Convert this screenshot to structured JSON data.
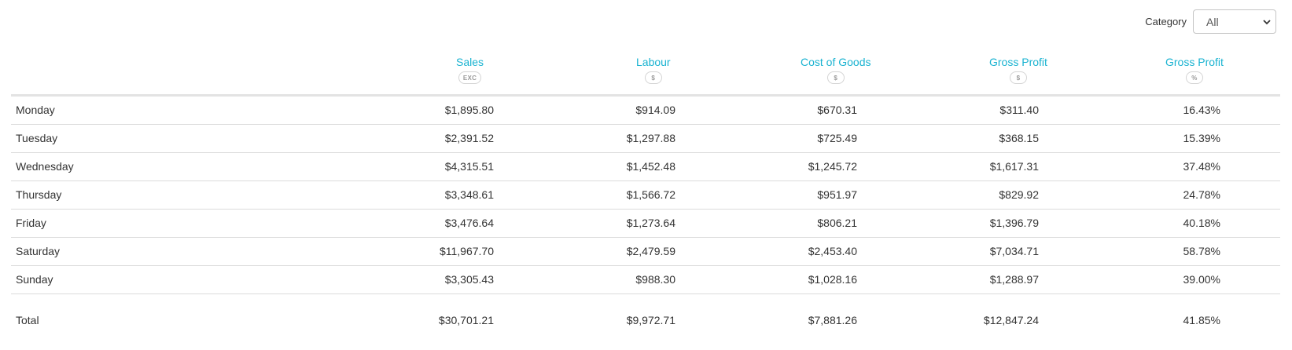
{
  "filter": {
    "label": "Category",
    "selected": "All"
  },
  "columns": [
    {
      "title": "Sales",
      "badge": "EXC"
    },
    {
      "title": "Labour",
      "badge": "$"
    },
    {
      "title": "Cost of Goods",
      "badge": "$"
    },
    {
      "title": "Gross Profit",
      "badge": "$"
    },
    {
      "title": "Gross Profit",
      "badge": "%"
    }
  ],
  "rows": [
    {
      "day": "Monday",
      "sales": "$1,895.80",
      "labour": "$914.09",
      "cogs": "$670.31",
      "gp": "$311.40",
      "gp_pct": "16.43%"
    },
    {
      "day": "Tuesday",
      "sales": "$2,391.52",
      "labour": "$1,297.88",
      "cogs": "$725.49",
      "gp": "$368.15",
      "gp_pct": "15.39%"
    },
    {
      "day": "Wednesday",
      "sales": "$4,315.51",
      "labour": "$1,452.48",
      "cogs": "$1,245.72",
      "gp": "$1,617.31",
      "gp_pct": "37.48%"
    },
    {
      "day": "Thursday",
      "sales": "$3,348.61",
      "labour": "$1,566.72",
      "cogs": "$951.97",
      "gp": "$829.92",
      "gp_pct": "24.78%"
    },
    {
      "day": "Friday",
      "sales": "$3,476.64",
      "labour": "$1,273.64",
      "cogs": "$806.21",
      "gp": "$1,396.79",
      "gp_pct": "40.18%"
    },
    {
      "day": "Saturday",
      "sales": "$11,967.70",
      "labour": "$2,479.59",
      "cogs": "$2,453.40",
      "gp": "$7,034.71",
      "gp_pct": "58.78%"
    },
    {
      "day": "Sunday",
      "sales": "$3,305.43",
      "labour": "$988.30",
      "cogs": "$1,028.16",
      "gp": "$1,288.97",
      "gp_pct": "39.00%"
    }
  ],
  "total": {
    "label": "Total",
    "sales": "$30,701.21",
    "labour": "$9,972.71",
    "cogs": "$7,881.26",
    "gp": "$12,847.24",
    "gp_pct": "41.85%"
  },
  "colors": {
    "header_accent": "#1ab3d1",
    "row_divider": "#dcdcdc"
  }
}
